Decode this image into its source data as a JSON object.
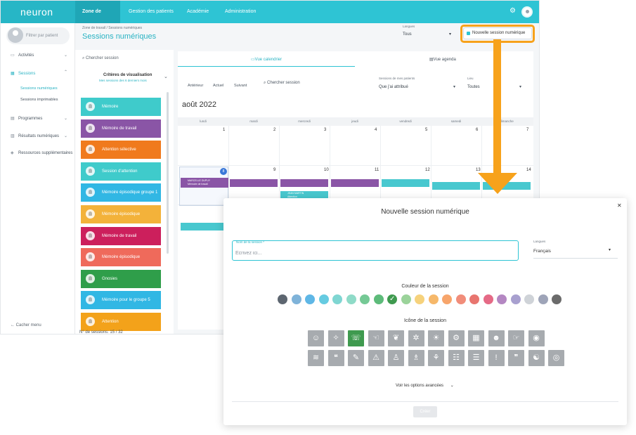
{
  "topbar": {
    "brand": "neuron",
    "nav": [
      "Zone de travail",
      "Gestion des patients",
      "Académie",
      "Administration"
    ]
  },
  "sidebar": {
    "patient_filter_placeholder": "Filtrer par patient",
    "items": [
      {
        "label": "Activités"
      },
      {
        "label": "Sessions"
      },
      {
        "label": "Sessions numériques"
      },
      {
        "label": "Sessions imprimables"
      },
      {
        "label": "Programmes"
      },
      {
        "label": "Résultats numériques"
      },
      {
        "label": "Ressources supplémentaires"
      }
    ],
    "footer": "Cacher menu"
  },
  "header": {
    "breadcrumb": "Zone de travail  /  Sessions numériques",
    "title": "Sessions numériques",
    "language_label": "Langues",
    "language_value": "Tous",
    "new_session_button": "Nouvelle session numérique"
  },
  "session_list": {
    "search_placeholder": "Chercher session",
    "criteria_title": "Critères de visualisation",
    "criteria_subtitle": "Mes sessions des 6 derniers mois",
    "sessions": [
      {
        "label": "Mémoire",
        "color": "#3fcbcb"
      },
      {
        "label": "Mémoire de travail",
        "color": "#8a55a6"
      },
      {
        "label": "Attention sélective",
        "color": "#f07a1d"
      },
      {
        "label": "Session d'attention",
        "color": "#3fcbcb"
      },
      {
        "label": "Mémoire épisodique groupe 1",
        "color": "#31b7e4"
      },
      {
        "label": "Mémoire épisodique",
        "color": "#f3b23a"
      },
      {
        "label": "Mémoire de travail",
        "color": "#cc1f5c"
      },
      {
        "label": "Mémoire épisodique",
        "color": "#ef6a5b"
      },
      {
        "label": "Gnosies",
        "color": "#2f9e4a"
      },
      {
        "label": "Mémoire pour le groupe 5",
        "color": "#31b7e4"
      },
      {
        "label": "Attention",
        "color": "#f3a21a"
      }
    ],
    "count": "N° de sessions: 15 / 32"
  },
  "calendar": {
    "tab_calendar": "Vue calendrier",
    "tab_agenda": "Vue agenda",
    "prev": "Antérieur",
    "current": "Actuel",
    "next": "Suivant",
    "search_placeholder": "Chercher session",
    "filter_label": "Sessions de mes patients",
    "filter_value": "Que j'ai attribué",
    "location_label": "Lieu",
    "location_value": "Toutes",
    "month": "août 2022",
    "weekdays": [
      "lundi",
      "mardi",
      "mercredi",
      "jeudi",
      "vendredi",
      "samedi",
      "dimanche"
    ],
    "week1": [
      "1",
      "2",
      "3",
      "4",
      "5",
      "6",
      "7"
    ],
    "week2": [
      "8",
      "9",
      "10",
      "11",
      "12",
      "13",
      "14"
    ],
    "event1_line1": "MARCELLE DUPUY",
    "event1_line2": "Mémoire de travail",
    "event2_line1": "JEAN MARTIN",
    "event2_line2": "Attention"
  },
  "modal": {
    "title": "Nouvelle session numérique",
    "name_label": "Nom de la session *",
    "name_placeholder": "Écrivez ici...",
    "language_label": "Langues",
    "language_value": "Français",
    "color_title": "Couleur de la session",
    "colors": [
      "#5d6670",
      "#7fb3d9",
      "#5fb7e6",
      "#66cbe1",
      "#7fd6d2",
      "#8fdbc8",
      "#75c995",
      "#5dbb7a",
      "#3f9a4f",
      "#9bd39a",
      "#f6d27c",
      "#f6b86a",
      "#f7a56b",
      "#f18d7a",
      "#e8756f",
      "#e56a86",
      "#b487c2",
      "#a8a0cf",
      "#cfd3d8",
      "#9ea4b8",
      "#6b6b6b"
    ],
    "selected_color_index": 8,
    "icon_title": "Icône de la session",
    "icons": [
      "person",
      "head-puzzle",
      "head-chat",
      "hand-touch",
      "brain",
      "head-gears",
      "head-bulb",
      "head-cogs",
      "ruler-cubes",
      "head-profile",
      "pointing",
      "head-eye",
      "head-waves",
      "head-speech",
      "pencil-write",
      "warning-head",
      "person-walk",
      "person-sit",
      "cutlery",
      "group",
      "people-row",
      "head-exclaim",
      "speech-bubble",
      "head-mind",
      "target-head"
    ],
    "selected_icon_index": 2,
    "advanced": "Voir les options avancées",
    "create_button": "Créer"
  }
}
